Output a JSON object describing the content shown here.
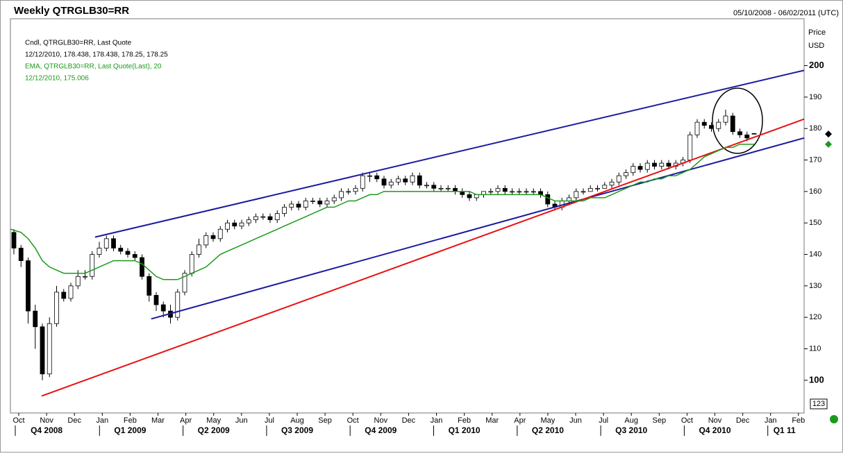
{
  "chart_data": {
    "type": "candlestick",
    "title": "Weekly QTRGLB30=RR",
    "date_range": "05/10/2008 - 06/02/2011 (UTC)",
    "y_axis_label": "Price",
    "y_axis_unit": "USD",
    "corner_label": "123",
    "legend": [
      "Cndl, QTRGLB30=RR, Last Quote",
      "12/12/2010, 178.438, 178.438, 178.25, 178.25",
      "EMA, QTRGLB30=RR, Last Quote(Last),  20",
      "12/12/2010, 175.006"
    ],
    "months": [
      "Oct",
      "Nov",
      "Dec",
      "Jan",
      "Feb",
      "Mar",
      "Apr",
      "May",
      "Jun",
      "Jul",
      "Aug",
      "Sep",
      "Oct",
      "Nov",
      "Dec",
      "Jan",
      "Feb",
      "Mar",
      "Apr",
      "May",
      "Jun",
      "Jul",
      "Aug",
      "Sep",
      "Oct",
      "Nov",
      "Dec",
      "Jan",
      "Feb"
    ],
    "quarters": [
      "Q4 2008",
      "Q1 2009",
      "Q2 2009",
      "Q3 2009",
      "Q4 2009",
      "Q1 2010",
      "Q2 2010",
      "Q3 2010",
      "Q4 2010",
      "Q1 11"
    ],
    "ylim": [
      89.6,
      214.9
    ],
    "yticks": [
      100,
      110,
      120,
      130,
      140,
      150,
      160,
      170,
      180,
      190,
      200
    ],
    "open": [
      147,
      142,
      138,
      122,
      117,
      102,
      118,
      128,
      126,
      130,
      133,
      133,
      140,
      142,
      145,
      142,
      141,
      140,
      139,
      133,
      127,
      124,
      122,
      120,
      128,
      134,
      140,
      143,
      146,
      145,
      148,
      150,
      149,
      150,
      151,
      152,
      152,
      151,
      153,
      155,
      156,
      155,
      157,
      157,
      156,
      157,
      158,
      160,
      160,
      161,
      165,
      165,
      164,
      162,
      163,
      164,
      163,
      165,
      162,
      162,
      161,
      161,
      161,
      160,
      159,
      158,
      159,
      160,
      160,
      161,
      160,
      160,
      160,
      160,
      160,
      159,
      156,
      155,
      157,
      158,
      160,
      160,
      161,
      161,
      162,
      163,
      165,
      166,
      168,
      167,
      169,
      168,
      169,
      168,
      169,
      170,
      178,
      182,
      181,
      180,
      182,
      184,
      179,
      178,
      178.438
    ],
    "high": [
      148,
      143,
      139,
      124,
      118,
      120,
      130,
      129,
      131,
      135,
      135,
      141,
      144,
      146,
      146,
      143,
      142,
      141,
      140,
      134,
      128,
      125,
      124,
      129,
      135,
      141,
      145,
      147,
      147,
      149,
      151,
      151,
      151,
      152,
      153,
      153,
      153,
      154,
      156,
      157,
      157,
      158,
      158,
      158,
      158,
      159,
      161,
      161,
      162,
      166,
      166,
      166,
      165,
      164,
      165,
      165,
      166,
      166,
      163,
      163,
      162,
      162,
      162,
      161,
      160,
      159,
      160,
      161,
      162,
      162,
      161,
      161,
      161,
      161,
      161,
      160,
      157,
      158,
      159,
      161,
      161,
      162,
      162,
      163,
      164,
      166,
      167,
      169,
      169,
      170,
      170,
      170,
      170,
      170,
      171,
      179,
      183,
      183,
      182,
      183,
      186,
      185,
      180,
      179,
      178.438
    ],
    "low": [
      140,
      136,
      118,
      110,
      100,
      101,
      117,
      125,
      125,
      129,
      132,
      132,
      139,
      141,
      141,
      140,
      139,
      138,
      132,
      125,
      122,
      120,
      118,
      119,
      127,
      133,
      139,
      142,
      144,
      144,
      147,
      148,
      148,
      149,
      150,
      151,
      150,
      150,
      152,
      154,
      154,
      154,
      156,
      155,
      155,
      156,
      157,
      159,
      159,
      160,
      163,
      163,
      161,
      161,
      162,
      162,
      162,
      161,
      161,
      160,
      160,
      160,
      159,
      158,
      157,
      157,
      158,
      159,
      159,
      159,
      159,
      159,
      159,
      159,
      158,
      155,
      154,
      154,
      156,
      157,
      159,
      160,
      160,
      161,
      161,
      162,
      164,
      165,
      166,
      166,
      167,
      167,
      167,
      167,
      168,
      169,
      177,
      180,
      179,
      179,
      181,
      178,
      177,
      176,
      178.25
    ],
    "close": [
      142,
      138,
      122,
      117,
      102,
      118,
      128,
      126,
      130,
      133,
      133,
      140,
      142,
      145,
      142,
      141,
      140,
      139,
      133,
      127,
      124,
      122,
      120,
      128,
      134,
      140,
      143,
      146,
      145,
      148,
      150,
      149,
      150,
      151,
      152,
      152,
      151,
      153,
      155,
      156,
      155,
      157,
      157,
      156,
      157,
      158,
      160,
      160,
      161,
      165,
      165,
      164,
      162,
      163,
      164,
      163,
      165,
      162,
      162,
      161,
      161,
      161,
      160,
      159,
      158,
      159,
      160,
      160,
      161,
      160,
      160,
      160,
      160,
      160,
      159,
      156,
      155,
      157,
      158,
      160,
      160,
      161,
      161,
      162,
      163,
      165,
      166,
      168,
      167,
      169,
      168,
      169,
      168,
      169,
      170,
      178,
      182,
      181,
      180,
      182,
      184,
      179,
      178,
      177,
      178.25
    ],
    "ema": {
      "color": "#1a9a1a",
      "values": [
        148,
        147,
        145,
        142,
        138,
        136,
        135,
        134,
        134,
        134,
        134,
        135,
        136,
        137,
        138,
        138,
        138,
        138,
        137,
        135,
        133,
        132,
        132,
        132,
        133,
        134,
        135,
        136,
        138,
        140,
        141,
        142,
        143,
        144,
        145,
        146,
        147,
        148,
        149,
        150,
        151,
        152,
        153,
        154,
        155,
        155,
        156,
        157,
        157,
        158,
        159,
        159,
        160,
        160,
        160,
        160,
        160,
        160,
        160,
        160,
        160,
        160,
        160,
        160,
        160,
        159,
        159,
        159,
        159,
        159,
        159,
        159,
        159,
        159,
        159,
        158,
        157,
        157,
        157,
        157,
        157,
        158,
        158,
        158,
        159,
        160,
        161,
        162,
        163,
        163,
        164,
        164,
        165,
        165,
        166,
        167,
        169,
        171,
        172,
        173,
        174,
        174,
        175,
        175,
        175.006
      ]
    },
    "trendlines": [
      {
        "color": "#1a1aa0",
        "from": [
          11.4,
          145.5
        ],
        "to": [
          111.2,
          198.5
        ]
      },
      {
        "color": "#1a1aa0",
        "from": [
          19.3,
          119.5
        ],
        "to": [
          111.2,
          177
        ]
      },
      {
        "color": "#e81010",
        "from": [
          3.9,
          95
        ],
        "to": [
          111.2,
          183
        ]
      }
    ]
  }
}
